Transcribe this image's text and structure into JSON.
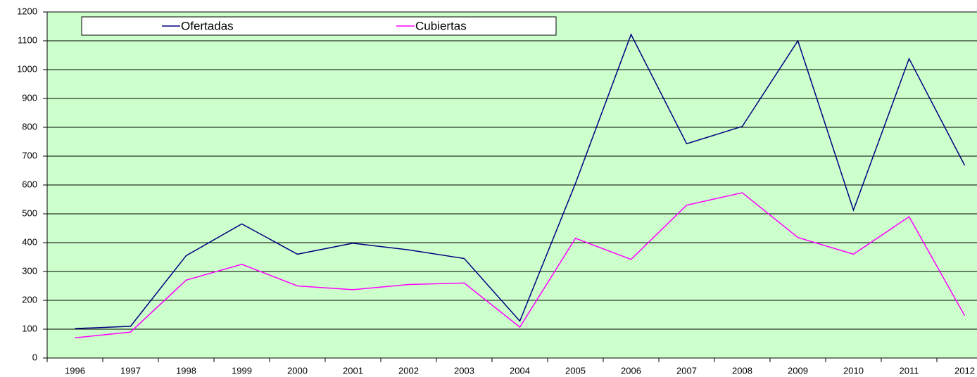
{
  "chart_data": {
    "type": "line",
    "categories": [
      "1996",
      "1997",
      "1998",
      "1999",
      "2000",
      "2001",
      "2002",
      "2003",
      "2004",
      "2005",
      "2006",
      "2007",
      "2008",
      "2009",
      "2010",
      "2011",
      "2012"
    ],
    "series": [
      {
        "name": "Ofertadas",
        "color": "#000080",
        "values": [
          102,
          110,
          355,
          465,
          360,
          398,
          375,
          345,
          128,
          605,
          1122,
          743,
          803,
          1100,
          513,
          1038,
          668
        ]
      },
      {
        "name": "Cubiertas",
        "color": "#ff00ff",
        "values": [
          70,
          90,
          270,
          325,
          250,
          237,
          255,
          260,
          107,
          415,
          342,
          530,
          573,
          418,
          360,
          490,
          147
        ]
      }
    ],
    "ylim": [
      0,
      1200
    ],
    "yticks": [
      0,
      100,
      200,
      300,
      400,
      500,
      600,
      700,
      800,
      900,
      1000,
      1100,
      1200
    ],
    "grid": true,
    "background": "#ccffcc",
    "legend": "top"
  }
}
